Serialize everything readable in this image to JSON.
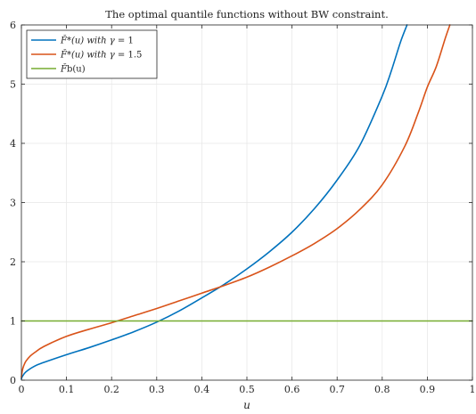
{
  "chart_data": {
    "type": "line",
    "title": "The optimal quantile functions without BW constraint.",
    "xlabel": "u",
    "ylabel": "",
    "xlim": [
      0,
      1
    ],
    "ylim": [
      0,
      6
    ],
    "xticks": [
      0,
      0.1,
      0.2,
      0.3,
      0.4,
      0.5,
      0.6,
      0.7,
      0.8,
      0.9,
      1
    ],
    "xtick_labels": [
      "0",
      "0.1",
      "0.2",
      "0.3",
      "0.4",
      "0.5",
      "0.6",
      "0.7",
      "0.8",
      "0.9",
      "1"
    ],
    "yticks": [
      0,
      1,
      2,
      3,
      4,
      5,
      6
    ],
    "ytick_labels": [
      "0",
      "1",
      "2",
      "3",
      "4",
      "5",
      "6"
    ],
    "grid": true,
    "legend_position": "top-left",
    "series": [
      {
        "name": "F̌*(u) with γ = 1",
        "legend_label": {
          "prefix": "F̌*(u) with ",
          "symbol": "γ",
          "suffix": " = 1"
        },
        "color": "#0072bd",
        "x": [
          0,
          0.002,
          0.01,
          0.03,
          0.05,
          0.1,
          0.15,
          0.2,
          0.25,
          0.3,
          0.35,
          0.4,
          0.45,
          0.5,
          0.55,
          0.6,
          0.65,
          0.7,
          0.75,
          0.8,
          0.82,
          0.84,
          0.855
        ],
        "y": [
          0.02,
          0.06,
          0.14,
          0.24,
          0.3,
          0.43,
          0.55,
          0.68,
          0.82,
          0.98,
          1.17,
          1.39,
          1.62,
          1.88,
          2.17,
          2.5,
          2.9,
          3.38,
          3.96,
          4.8,
          5.22,
          5.7,
          6.0
        ]
      },
      {
        "name": "F̌*(u) with γ = 1.5",
        "legend_label": {
          "prefix": "F̌*(u) with ",
          "symbol": "γ",
          "suffix": " = 1.5"
        },
        "color": "#d95319",
        "x": [
          0,
          0.002,
          0.005,
          0.01,
          0.02,
          0.03,
          0.05,
          0.1,
          0.15,
          0.2,
          0.25,
          0.3,
          0.35,
          0.4,
          0.45,
          0.5,
          0.55,
          0.6,
          0.65,
          0.7,
          0.75,
          0.8,
          0.85,
          0.88,
          0.9,
          0.92,
          0.94,
          0.95
        ],
        "y": [
          0.05,
          0.16,
          0.24,
          0.32,
          0.41,
          0.47,
          0.57,
          0.74,
          0.86,
          0.97,
          1.09,
          1.21,
          1.34,
          1.47,
          1.6,
          1.74,
          1.91,
          2.1,
          2.31,
          2.56,
          2.88,
          3.3,
          3.95,
          4.52,
          4.95,
          5.3,
          5.78,
          6.0
        ]
      },
      {
        "name": "F̌b(u)",
        "legend_label": {
          "prefix": "F̌",
          "symbol": "",
          "suffix": "b(u)"
        },
        "color": "#77ac30",
        "x": [
          0,
          1
        ],
        "y": [
          1,
          1
        ]
      }
    ]
  }
}
